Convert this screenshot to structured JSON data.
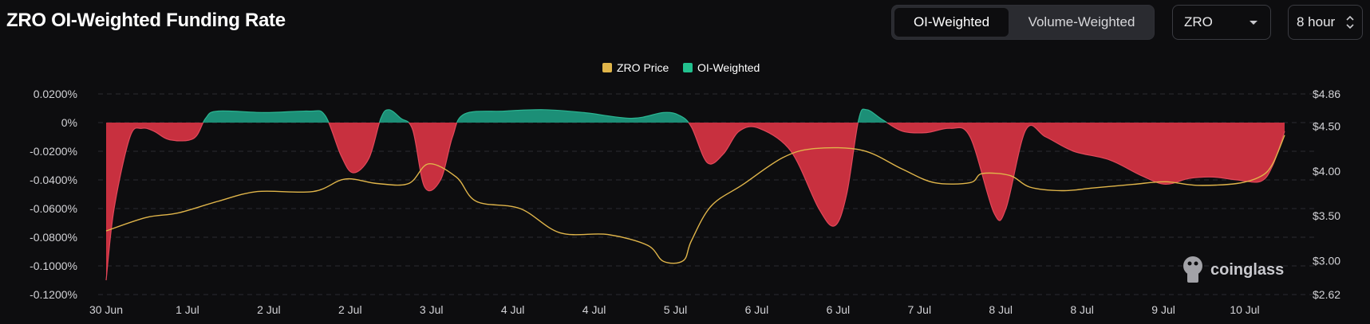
{
  "header": {
    "title": "ZRO OI-Weighted Funding Rate",
    "tabs": [
      {
        "label": "OI-Weighted",
        "active": true
      },
      {
        "label": "Volume-Weighted",
        "active": false
      }
    ],
    "coin_select": "ZRO",
    "interval_select": "8 hour",
    "icons": [
      "chevron-down-icon",
      "updown-chevron-icon"
    ]
  },
  "watermark": "coinglass",
  "colors": {
    "background": "#0d0d0f",
    "price_line": "#e0b54a",
    "funding_positive": "#1c8f77",
    "funding_negative": "#c8303f",
    "grid": "#2b2c31"
  },
  "chart_data": {
    "type": "area",
    "legend": [
      "ZRO Price",
      "OI-Weighted"
    ],
    "legend_position": "top-center",
    "grid": true,
    "x_tick_labels": [
      "30 Jun",
      "1 Jul",
      "2 Jul",
      "2 Jul",
      "3 Jul",
      "4 Jul",
      "4 Jul",
      "5 Jul",
      "6 Jul",
      "6 Jul",
      "7 Jul",
      "8 Jul",
      "8 Jul",
      "9 Jul",
      "10 Jul"
    ],
    "y_left": {
      "tick_labels": [
        "0.0200%",
        "0%",
        "-0.0200%",
        "-0.0400%",
        "-0.0600%",
        "-0.0800%",
        "-0.1000%",
        "-0.1200%"
      ],
      "range": [
        -0.12,
        0.02
      ]
    },
    "y_right": {
      "tick_labels": [
        "$4.86",
        "$4.50",
        "$4.00",
        "$3.50",
        "$3.00",
        "$2.62"
      ],
      "range": [
        2.62,
        4.86
      ]
    },
    "x_range": [
      0,
      14.8
    ],
    "series": [
      {
        "name": "OI-Weighted",
        "axis": "left",
        "points": [
          [
            0,
            -0.11
          ],
          [
            0.1,
            -0.06
          ],
          [
            0.3,
            -0.01
          ],
          [
            0.45,
            -0.004
          ],
          [
            0.6,
            -0.006
          ],
          [
            0.8,
            -0.012
          ],
          [
            1.1,
            -0.011
          ],
          [
            1.25,
            0.003
          ],
          [
            1.4,
            0.008
          ],
          [
            2.0,
            0.007
          ],
          [
            2.55,
            0.008
          ],
          [
            2.75,
            0.005
          ],
          [
            2.95,
            -0.023
          ],
          [
            3.1,
            -0.035
          ],
          [
            3.3,
            -0.025
          ],
          [
            3.45,
            0.003
          ],
          [
            3.55,
            0.009
          ],
          [
            3.7,
            0.003
          ],
          [
            3.85,
            -0.005
          ],
          [
            4.0,
            -0.045
          ],
          [
            4.2,
            -0.04
          ],
          [
            4.35,
            -0.01
          ],
          [
            4.5,
            0.006
          ],
          [
            5.0,
            0.008
          ],
          [
            5.5,
            0.009
          ],
          [
            6.0,
            0.007
          ],
          [
            6.6,
            0.003
          ],
          [
            7.0,
            0.007
          ],
          [
            7.2,
            0.005
          ],
          [
            7.35,
            -0.003
          ],
          [
            7.55,
            -0.028
          ],
          [
            7.75,
            -0.022
          ],
          [
            7.95,
            -0.006
          ],
          [
            8.2,
            -0.004
          ],
          [
            8.6,
            -0.02
          ],
          [
            8.95,
            -0.06
          ],
          [
            9.15,
            -0.072
          ],
          [
            9.3,
            -0.05
          ],
          [
            9.45,
            0.002
          ],
          [
            9.55,
            0.009
          ],
          [
            9.75,
            0.002
          ],
          [
            10.0,
            -0.006
          ],
          [
            10.3,
            -0.007
          ],
          [
            10.6,
            -0.004
          ],
          [
            10.85,
            -0.01
          ],
          [
            11.15,
            -0.063
          ],
          [
            11.3,
            -0.06
          ],
          [
            11.55,
            -0.005
          ],
          [
            11.8,
            -0.01
          ],
          [
            12.15,
            -0.02
          ],
          [
            12.6,
            -0.026
          ],
          [
            13.0,
            -0.037
          ],
          [
            13.3,
            -0.043
          ],
          [
            13.6,
            -0.039
          ],
          [
            13.9,
            -0.038
          ],
          [
            14.2,
            -0.04
          ],
          [
            14.5,
            -0.041
          ],
          [
            14.65,
            -0.03
          ],
          [
            14.8,
            -0.006
          ]
        ]
      },
      {
        "name": "ZRO Price",
        "axis": "right",
        "points": [
          [
            0,
            3.33
          ],
          [
            0.5,
            3.48
          ],
          [
            0.9,
            3.53
          ],
          [
            1.4,
            3.66
          ],
          [
            1.9,
            3.77
          ],
          [
            2.6,
            3.77
          ],
          [
            3.0,
            3.91
          ],
          [
            3.4,
            3.86
          ],
          [
            3.8,
            3.86
          ],
          [
            4.05,
            4.08
          ],
          [
            4.4,
            3.93
          ],
          [
            4.65,
            3.66
          ],
          [
            5.2,
            3.58
          ],
          [
            5.7,
            3.31
          ],
          [
            6.3,
            3.29
          ],
          [
            6.8,
            3.17
          ],
          [
            7.0,
            2.99
          ],
          [
            7.25,
            3.0
          ],
          [
            7.35,
            3.22
          ],
          [
            7.6,
            3.61
          ],
          [
            8.0,
            3.85
          ],
          [
            8.5,
            4.15
          ],
          [
            8.9,
            4.25
          ],
          [
            9.5,
            4.23
          ],
          [
            10.0,
            4.02
          ],
          [
            10.4,
            3.87
          ],
          [
            10.85,
            3.87
          ],
          [
            11.0,
            3.97
          ],
          [
            11.35,
            3.95
          ],
          [
            11.6,
            3.82
          ],
          [
            12.0,
            3.78
          ],
          [
            12.4,
            3.81
          ],
          [
            12.9,
            3.85
          ],
          [
            13.3,
            3.88
          ],
          [
            13.7,
            3.84
          ],
          [
            14.2,
            3.86
          ],
          [
            14.5,
            3.94
          ],
          [
            14.65,
            4.08
          ],
          [
            14.8,
            4.4
          ]
        ]
      }
    ]
  }
}
